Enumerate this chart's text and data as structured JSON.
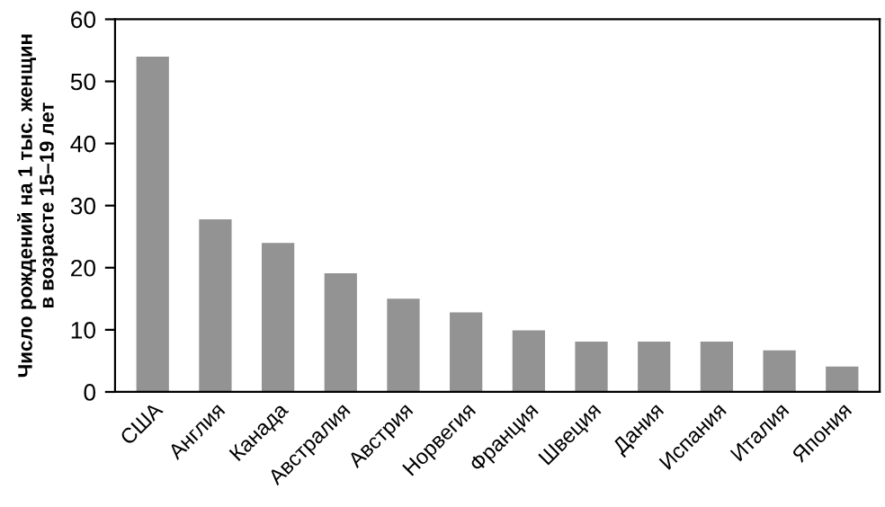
{
  "chart_data": {
    "type": "bar",
    "ylabel": "Число рождений на 1 тыс. женщин\nв возрасте 15–19 лет",
    "categories": [
      "США",
      "Англия",
      "Канада",
      "Австралия",
      "Австрия",
      "Норвегия",
      "Франция",
      "Швеция",
      "Дания",
      "Испания",
      "Италия",
      "Япония"
    ],
    "values": [
      54,
      27.8,
      24,
      19.1,
      15,
      12.8,
      9.9,
      8.1,
      8.1,
      8.1,
      6.7,
      4.1
    ],
    "color": "#939393",
    "ylim": [
      0,
      60
    ],
    "yticks": [
      0,
      10,
      20,
      30,
      40,
      50,
      60
    ],
    "grid": false
  }
}
